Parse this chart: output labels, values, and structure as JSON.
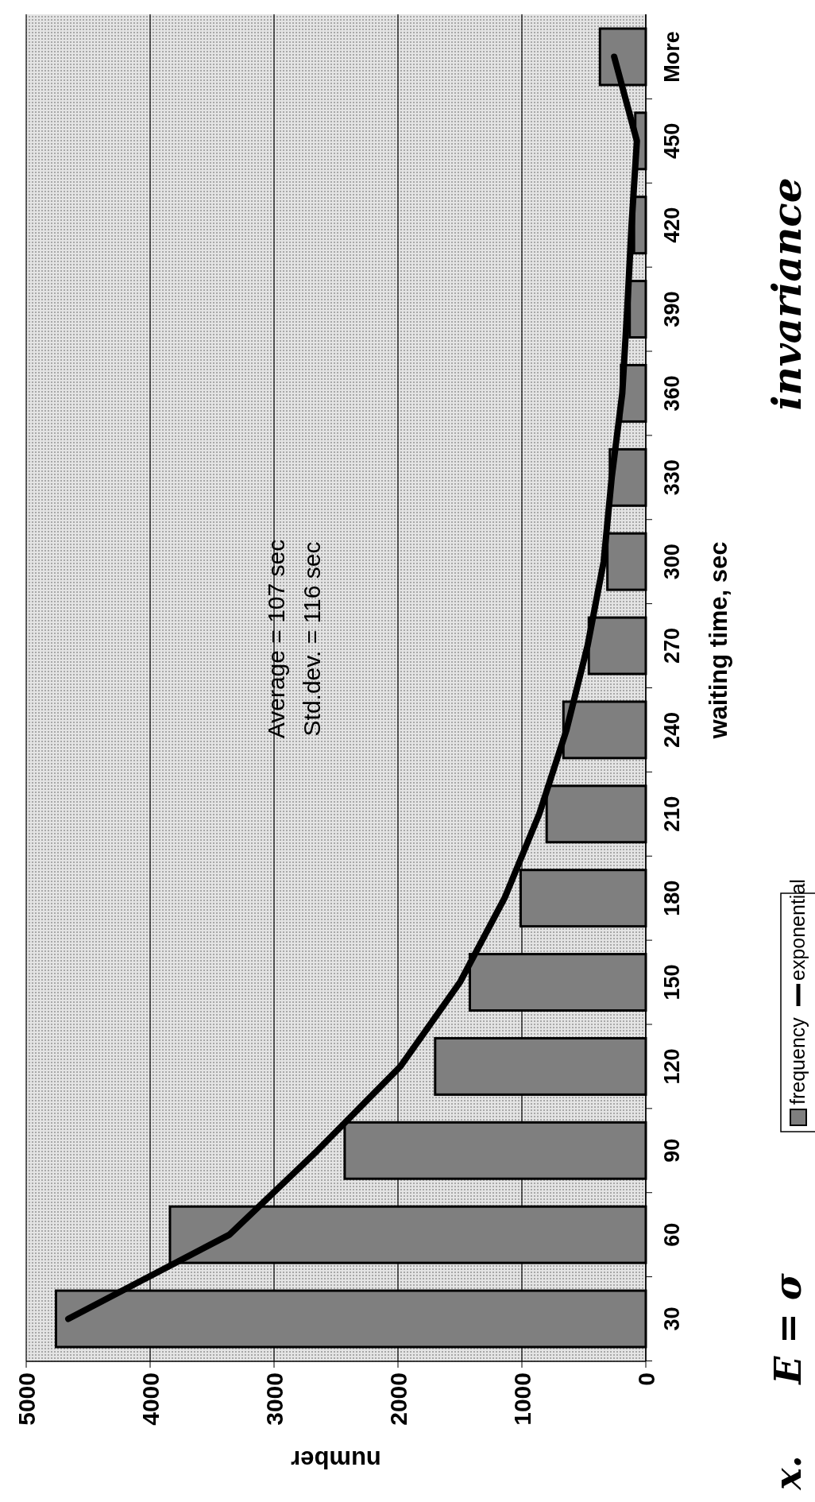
{
  "chart_data": {
    "type": "bar",
    "orientation": "horizontal",
    "xlabel": "number",
    "ylabel": "waiting time, sec",
    "categories": [
      "More",
      "450",
      "420",
      "390",
      "360",
      "330",
      "300",
      "270",
      "240",
      "210",
      "180",
      "150",
      "120",
      "90",
      "60",
      "30"
    ],
    "series": [
      {
        "name": "frequency",
        "color": "#7f7f7f",
        "values": [
          370,
          85,
          95,
          130,
          200,
          290,
          310,
          460,
          665,
          800,
          1010,
          1420,
          1700,
          2430,
          3840,
          4760
        ]
      },
      {
        "name": "exponential",
        "type": "line",
        "color": "#000000",
        "values": [
          255,
          72,
          115,
          150,
          190,
          275,
          340,
          470,
          640,
          860,
          1140,
          1500,
          1980,
          2650,
          3360,
          4660
        ]
      }
    ],
    "xlim": [
      5000,
      0
    ],
    "xticks": [
      5000,
      4000,
      3000,
      2000,
      1000,
      0
    ],
    "grid": "x",
    "legend": "bottom",
    "annotations": [
      "Average = 107 sec",
      "Std.dev. = 116 sec",
      "E = σ",
      "invariance",
      "x."
    ]
  }
}
